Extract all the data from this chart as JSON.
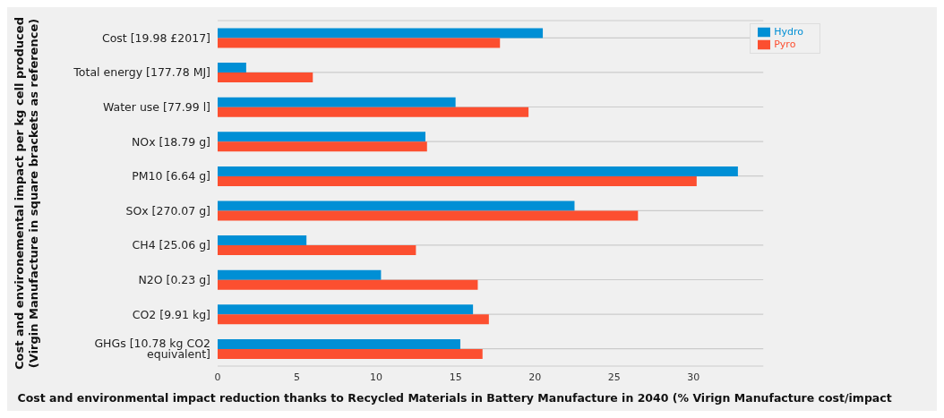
{
  "chart_data": {
    "type": "bar",
    "orientation": "horizontal",
    "xlabel": "Cost and environmental impact reduction thanks to Recycled Materials in Battery Manufacture in 2040 (% Virign Manufacture cost/impact",
    "ylabel": "Cost and environemental impact per kg cell produced\n(Virgin Manufacture in square brackets as reference)",
    "categories": [
      "Cost [19.98 £2017]",
      "Total energy [177.78 MJ]",
      "Water use [77.99 l]",
      "NOx [18.79 g]",
      "PM10 [6.64 g]",
      "SOx [270.07 g]",
      "CH4 [25.06 g]",
      "N2O [0.23 g]",
      "CO2 [9.91 kg]",
      "GHGs [10.78 kg CO2 equivalent]"
    ],
    "series": [
      {
        "name": "Hydro",
        "color": "#008fd5",
        "values": [
          20.5,
          1.8,
          15.0,
          13.1,
          32.8,
          22.5,
          5.6,
          10.3,
          16.1,
          15.3
        ]
      },
      {
        "name": "Pyro",
        "color": "#fc4f30",
        "values": [
          17.8,
          6.0,
          19.6,
          13.2,
          30.2,
          26.5,
          12.5,
          16.4,
          17.1,
          16.7
        ]
      }
    ],
    "xlim": [
      0,
      34.4
    ],
    "xticks": [
      0,
      5,
      10,
      15,
      20,
      25,
      30
    ],
    "grid": "y",
    "legend": "top right"
  }
}
